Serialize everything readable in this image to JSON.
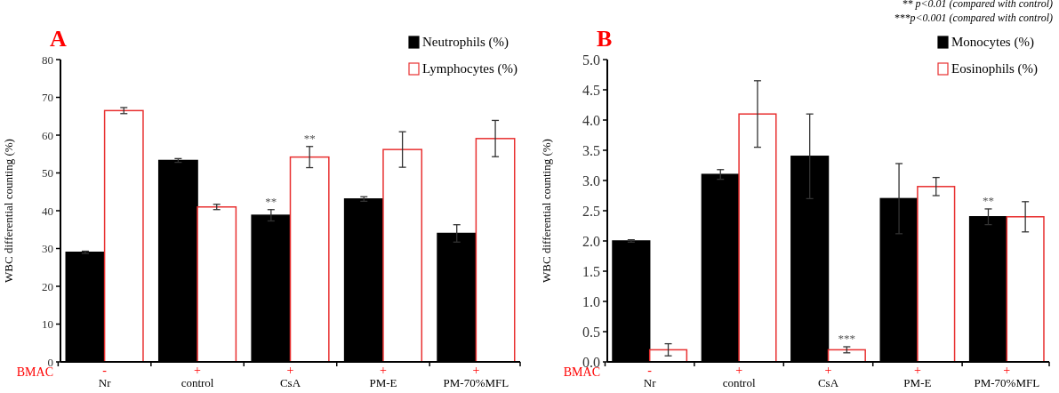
{
  "chart_data": [
    {
      "type": "bar",
      "title": "A",
      "ylabel": "WBC differential  counting (%)",
      "categories": [
        "Nr",
        "control",
        "CsA",
        "PM-E",
        "PM-70%MFL"
      ],
      "ylim": [
        0,
        80
      ],
      "yticks": [
        0,
        10,
        20,
        30,
        40,
        50,
        60,
        70,
        80
      ],
      "legend": "top right",
      "grid": false,
      "series": [
        {
          "name": "Neutrophils (%)",
          "color": "#000000",
          "values": [
            29,
            53.3,
            38.8,
            43.1,
            34
          ],
          "errors": [
            0.3,
            0.5,
            1.5,
            0.6,
            2.3
          ]
        },
        {
          "name": "Lymphocytes (%)",
          "color": "#ffffff",
          "values": [
            66.5,
            41,
            54.2,
            56.2,
            59.1
          ],
          "errors": [
            0.8,
            0.7,
            2.8,
            4.7,
            4.8
          ]
        }
      ],
      "annotations": [
        "BMAC",
        "-",
        "+",
        "+",
        "+",
        "+",
        {
          "text": "**",
          "x": "CsA",
          "y": 38.8
        },
        {
          "text": "**",
          "x": "CsA",
          "y": 54.2
        }
      ]
    },
    {
      "type": "bar",
      "title": "B",
      "ylabel": "WBC differential  counting (%)",
      "categories": [
        "Nr",
        "control",
        "CsA",
        "PM-E",
        "PM-70%MFL"
      ],
      "ylim": [
        0,
        5
      ],
      "yticks": [
        {
          "value": 0,
          "label": "0.0"
        },
        {
          "value": 0.5,
          "label": "0.5"
        },
        {
          "value": 1,
          "label": "1.0"
        },
        {
          "value": 1.5,
          "label": "1.5"
        },
        {
          "value": 2,
          "label": "2.0"
        },
        {
          "value": 2.5,
          "label": "2.5"
        },
        {
          "value": 3,
          "label": "3.0"
        },
        {
          "value": 3.5,
          "label": "3.5"
        },
        {
          "value": 4,
          "label": "4.0"
        },
        {
          "value": 4.5,
          "label": "4.5"
        },
        {
          "value": 5,
          "label": "5.0"
        }
      ],
      "legend": "top right",
      "grid": false,
      "series": [
        {
          "name": "Monocytes (%)",
          "color": "#000000",
          "values": [
            2.0,
            3.1,
            3.4,
            2.7,
            2.4
          ],
          "errors": [
            0.02,
            0.08,
            0.7,
            0.58,
            0.13
          ]
        },
        {
          "name": "Eosinophils (%)",
          "color": "#ffffff",
          "values": [
            0.2,
            4.1,
            0.2,
            2.9,
            2.4
          ],
          "errors": [
            0.1,
            0.55,
            0.05,
            0.15,
            0.25
          ]
        }
      ],
      "annotations": [
        "** p<0.01   (compared with control)",
        "***p<0.001 (compared with control)",
        "BMAC",
        "-",
        "+",
        "+",
        "+",
        "+",
        {
          "text": "***",
          "x": "CsA",
          "y": 0.2
        },
        {
          "text": "**",
          "x": "PM-70%MFL",
          "y": 2.4
        }
      ]
    }
  ]
}
